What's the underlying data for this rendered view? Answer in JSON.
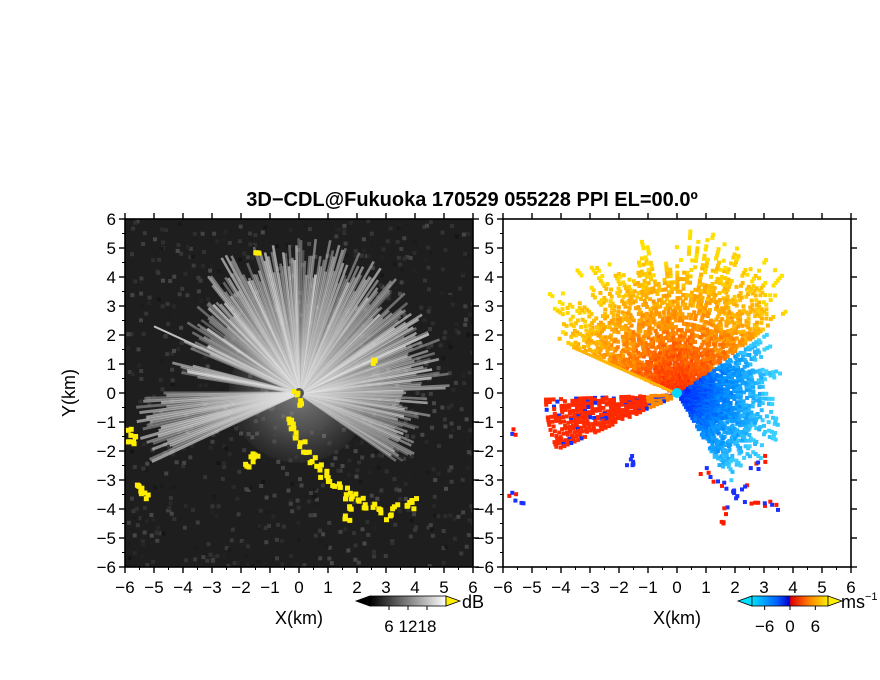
{
  "title": "3D−CDL@Fukuoka 170529 055228 PPI EL=00.0º",
  "chart_data": [
    {
      "type": "heatmap",
      "variable": "SNR",
      "xlabel": "X(km)",
      "ylabel": "Y(km)",
      "xlim": [
        -6,
        6
      ],
      "ylim": [
        -6,
        6
      ],
      "xticks": [
        "−6",
        "−5",
        "−4",
        "−3",
        "−2",
        "−1",
        "0",
        "1",
        "2",
        "3",
        "4",
        "5",
        "6"
      ],
      "yticks": [
        "−6",
        "−5",
        "−4",
        "−3",
        "−2",
        "−1",
        "0",
        "1",
        "2",
        "3",
        "4",
        "5",
        "6"
      ],
      "colorbar": {
        "unit": "dB",
        "ticks": [
          "6",
          "12",
          "18"
        ],
        "tick_values": [
          6,
          12,
          18
        ],
        "range": [
          0,
          24
        ],
        "colors": [
          "#000000",
          "#ffffff"
        ],
        "flag_color": "#ffee00"
      },
      "background_color": "#1e1e1e"
    },
    {
      "type": "heatmap",
      "variable": "Doppler velocity",
      "xlabel": "X(km)",
      "ylabel": "",
      "xlim": [
        -6,
        6
      ],
      "ylim": [
        -6,
        6
      ],
      "xticks": [
        "−6",
        "−5",
        "−4",
        "−3",
        "−2",
        "−1",
        "0",
        "1",
        "2",
        "3",
        "4",
        "5",
        "6"
      ],
      "yticks": [
        "−6",
        "−5",
        "−4",
        "−3",
        "−2",
        "−1",
        "0",
        "1",
        "2",
        "3",
        "4",
        "5",
        "6"
      ],
      "colorbar": {
        "unit": "ms",
        "unit_exponent": "−1",
        "ticks": [
          "−6",
          "0",
          "6"
        ],
        "tick_values": [
          -6,
          0,
          6
        ],
        "range": [
          -9,
          9
        ],
        "colors": [
          "#00e0ff",
          "#0060ff",
          "#0000cc",
          "#e00000",
          "#ff8000",
          "#ffee00"
        ]
      },
      "background_color": "#ffffff"
    }
  ]
}
